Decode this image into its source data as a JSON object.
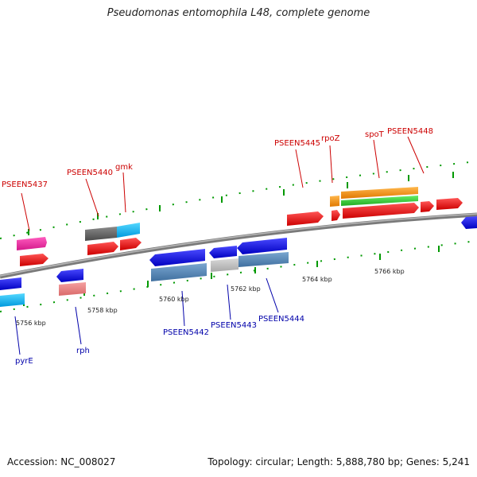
{
  "title": "Pseudomonas entomophila L48, complete genome",
  "footer": {
    "accession": "Accession: NC_008027",
    "topology": "Topology: circular; Length: 5,888,780 bp; Genes: 5,241"
  },
  "colors": {
    "forward_label": "#cc0000",
    "reverse_label": "#0000aa",
    "backbone": "#888888"
  },
  "kbp_ticks": [
    "5756 kbp",
    "5758 kbp",
    "5760 kbp",
    "5762 kbp",
    "5764 kbp",
    "5766 kbp"
  ],
  "gene_labels_top": [
    "PSEEN5437",
    "PSEEN5440",
    "gmk",
    "PSEEN5445",
    "rpoZ",
    "spoT",
    "PSEEN5448"
  ],
  "gene_labels_bottom": [
    "pyrE",
    "rph",
    "PSEEN5442",
    "PSEEN5443",
    "PSEEN5444"
  ]
}
